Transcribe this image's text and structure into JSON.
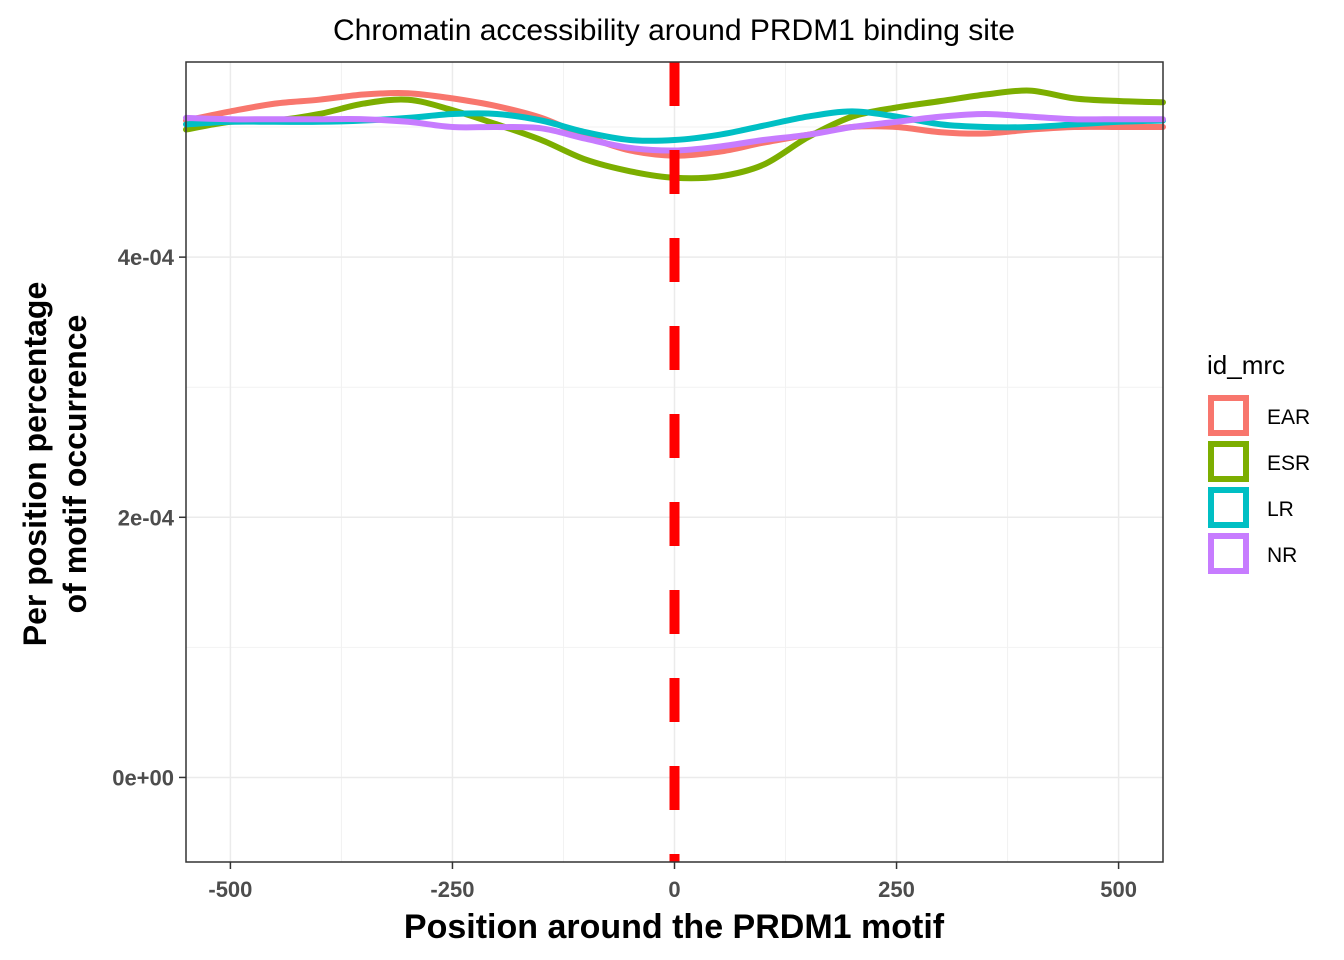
{
  "chart_data": {
    "type": "line",
    "title": "Chromatin accessibility around PRDM1 binding site",
    "xlabel": "Position around the PRDM1  motif",
    "ylabel_lines": [
      "Per position percentage",
      "of motif occurrence"
    ],
    "xlim": [
      -550,
      550
    ],
    "ylim": [
      -6.5e-05,
      0.00055
    ],
    "x_ticks": [
      -500,
      -250,
      0,
      250,
      500
    ],
    "x_tick_labels": [
      "-500",
      "-250",
      "0",
      "250",
      "500"
    ],
    "y_ticks": [
      0,
      0.0002,
      0.0004
    ],
    "y_tick_labels": [
      "0e+00",
      "2e-04",
      "4e-04"
    ],
    "grid": true,
    "reference_line": {
      "x": 0,
      "color": "#ff0000",
      "style": "dashed"
    },
    "legend": {
      "title": "id_mrc",
      "placement": "right"
    },
    "x": [
      -550,
      -500,
      -450,
      -400,
      -350,
      -300,
      -250,
      -200,
      -150,
      -100,
      -50,
      0,
      50,
      100,
      150,
      200,
      250,
      300,
      350,
      400,
      450,
      500,
      550
    ],
    "series": [
      {
        "name": "EAR",
        "color": "#F8766D",
        "values": [
          0.000505,
          0.000512,
          0.000518,
          0.000521,
          0.000525,
          0.000526,
          0.000522,
          0.000516,
          0.000507,
          0.000493,
          0.000482,
          0.000478,
          0.000481,
          0.000488,
          0.000494,
          0.0005,
          0.0005,
          0.000496,
          0.000495,
          0.000498,
          0.0005,
          0.0005,
          0.0005
        ]
      },
      {
        "name": "ESR",
        "color": "#7CAE00",
        "values": [
          0.000498,
          0.000504,
          0.000505,
          0.00051,
          0.000518,
          0.000521,
          0.000513,
          0.000502,
          0.00049,
          0.000475,
          0.000466,
          0.000461,
          0.000462,
          0.000471,
          0.000492,
          0.000508,
          0.000515,
          0.00052,
          0.000525,
          0.000528,
          0.000522,
          0.00052,
          0.000519
        ]
      },
      {
        "name": "LR",
        "color": "#00BFC4",
        "values": [
          0.000502,
          0.000504,
          0.000504,
          0.000504,
          0.000505,
          0.000507,
          0.00051,
          0.00051,
          0.000505,
          0.000496,
          0.00049,
          0.00049,
          0.000494,
          0.000501,
          0.000508,
          0.000512,
          0.000508,
          0.000502,
          0.0005,
          0.0005,
          0.000502,
          0.000504,
          0.000505
        ]
      },
      {
        "name": "NR",
        "color": "#C77CFF",
        "values": [
          0.000507,
          0.000506,
          0.000506,
          0.000506,
          0.000506,
          0.000504,
          0.0005,
          0.0005,
          0.000499,
          0.000491,
          0.000484,
          0.000482,
          0.000485,
          0.00049,
          0.000494,
          0.0005,
          0.000504,
          0.000508,
          0.00051,
          0.000508,
          0.000506,
          0.000506,
          0.000506
        ]
      }
    ]
  }
}
